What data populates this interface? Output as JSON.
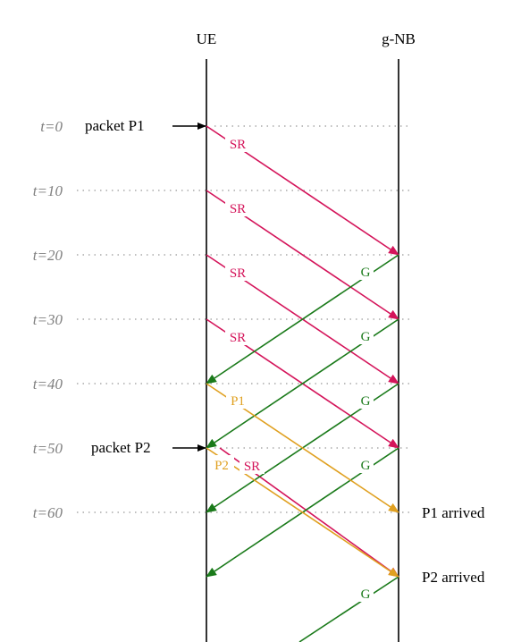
{
  "header": {
    "ue": "UE",
    "gnb": "g-NB"
  },
  "timeline": [
    "t=0",
    "t=10",
    "t=20",
    "t=30",
    "t=40",
    "t=50",
    "t=60"
  ],
  "events": {
    "p1": "packet P1",
    "p2": "packet P2"
  },
  "arrivals": {
    "p1": "P1 arrived",
    "p2": "P2 arrived"
  },
  "messages": {
    "sr": [
      "SR",
      "SR",
      "SR",
      "SR",
      "SR"
    ],
    "grant": [
      "G",
      "G",
      "G",
      "G",
      "G",
      "G"
    ],
    "p1": "P1",
    "p2": "P2"
  },
  "colors": {
    "sr": "#d4145a",
    "grant": "#1a7a1a",
    "packet": "#e0a020",
    "text": "#000000",
    "grid": "#999999"
  }
}
